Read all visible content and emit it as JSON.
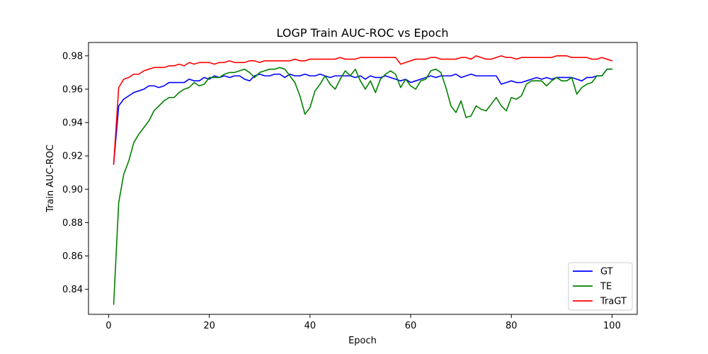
{
  "chart_data": {
    "type": "line",
    "title": "LOGP Train AUC-ROC vs Epoch",
    "xlabel": "Epoch",
    "ylabel": "Train AUC-ROC",
    "xlim": [
      -4,
      105
    ],
    "ylim": [
      0.825,
      0.988
    ],
    "xticks": [
      0,
      20,
      40,
      60,
      80,
      100
    ],
    "yticks": [
      0.84,
      0.86,
      0.88,
      0.9,
      0.92,
      0.94,
      0.96,
      0.98
    ],
    "ytick_labels": [
      "0.84",
      "0.86",
      "0.88",
      "0.90",
      "0.92",
      "0.94",
      "0.96",
      "0.98"
    ],
    "xtick_labels": [
      "0",
      "20",
      "40",
      "60",
      "80",
      "100"
    ],
    "grid": false,
    "legend": "bottom-right",
    "x": [
      1,
      2,
      3,
      4,
      5,
      6,
      7,
      8,
      9,
      10,
      11,
      12,
      13,
      14,
      15,
      16,
      17,
      18,
      19,
      20,
      21,
      22,
      23,
      24,
      25,
      26,
      27,
      28,
      29,
      30,
      31,
      32,
      33,
      34,
      35,
      36,
      37,
      38,
      39,
      40,
      41,
      42,
      43,
      44,
      45,
      46,
      47,
      48,
      49,
      50,
      51,
      52,
      53,
      54,
      55,
      56,
      57,
      58,
      59,
      60,
      61,
      62,
      63,
      64,
      65,
      66,
      67,
      68,
      69,
      70,
      71,
      72,
      73,
      74,
      75,
      76,
      77,
      78,
      79,
      80,
      81,
      82,
      83,
      84,
      85,
      86,
      87,
      88,
      89,
      90,
      91,
      92,
      93,
      94,
      95,
      96,
      97,
      98,
      99,
      100
    ],
    "series": [
      {
        "name": "GT",
        "color": "#0000ff",
        "values": [
          0.915,
          0.95,
          0.954,
          0.956,
          0.958,
          0.959,
          0.96,
          0.962,
          0.962,
          0.961,
          0.962,
          0.964,
          0.964,
          0.964,
          0.964,
          0.966,
          0.965,
          0.965,
          0.967,
          0.966,
          0.968,
          0.967,
          0.968,
          0.967,
          0.968,
          0.968,
          0.966,
          0.965,
          0.968,
          0.969,
          0.968,
          0.968,
          0.969,
          0.969,
          0.967,
          0.969,
          0.968,
          0.968,
          0.969,
          0.968,
          0.968,
          0.969,
          0.968,
          0.967,
          0.968,
          0.968,
          0.968,
          0.968,
          0.967,
          0.968,
          0.966,
          0.968,
          0.967,
          0.967,
          0.968,
          0.967,
          0.966,
          0.965,
          0.966,
          0.964,
          0.965,
          0.966,
          0.967,
          0.968,
          0.967,
          0.968,
          0.968,
          0.968,
          0.969,
          0.967,
          0.968,
          0.969,
          0.968,
          0.968,
          0.968,
          0.968,
          0.968,
          0.963,
          0.964,
          0.965,
          0.964,
          0.964,
          0.965,
          0.966,
          0.967,
          0.966,
          0.967,
          0.966,
          0.967,
          0.967,
          0.967,
          0.967,
          0.966,
          0.965,
          0.967,
          0.967,
          0.968,
          0.968,
          0.972,
          0.972
        ]
      },
      {
        "name": "TE",
        "color": "#008000",
        "values": [
          0.831,
          0.892,
          0.909,
          0.917,
          0.928,
          0.933,
          0.937,
          0.941,
          0.947,
          0.95,
          0.953,
          0.955,
          0.955,
          0.958,
          0.96,
          0.961,
          0.964,
          0.962,
          0.963,
          0.967,
          0.967,
          0.967,
          0.969,
          0.97,
          0.97,
          0.971,
          0.972,
          0.97,
          0.967,
          0.97,
          0.971,
          0.972,
          0.972,
          0.973,
          0.972,
          0.968,
          0.964,
          0.956,
          0.945,
          0.949,
          0.959,
          0.963,
          0.968,
          0.963,
          0.96,
          0.966,
          0.971,
          0.968,
          0.972,
          0.965,
          0.96,
          0.965,
          0.958,
          0.966,
          0.969,
          0.971,
          0.969,
          0.961,
          0.966,
          0.962,
          0.96,
          0.965,
          0.966,
          0.971,
          0.972,
          0.97,
          0.961,
          0.95,
          0.946,
          0.953,
          0.943,
          0.944,
          0.95,
          0.948,
          0.947,
          0.951,
          0.955,
          0.95,
          0.947,
          0.955,
          0.954,
          0.956,
          0.963,
          0.965,
          0.965,
          0.965,
          0.962,
          0.965,
          0.967,
          0.965,
          0.965,
          0.967,
          0.957,
          0.961,
          0.963,
          0.964,
          0.968,
          0.968,
          0.972,
          0.972
        ]
      },
      {
        "name": "TraGT",
        "color": "#ff0000",
        "values": [
          0.915,
          0.961,
          0.966,
          0.967,
          0.969,
          0.969,
          0.971,
          0.972,
          0.973,
          0.973,
          0.973,
          0.974,
          0.974,
          0.975,
          0.974,
          0.976,
          0.975,
          0.976,
          0.976,
          0.976,
          0.975,
          0.976,
          0.976,
          0.977,
          0.976,
          0.976,
          0.976,
          0.977,
          0.977,
          0.976,
          0.977,
          0.977,
          0.977,
          0.977,
          0.977,
          0.977,
          0.978,
          0.977,
          0.977,
          0.978,
          0.978,
          0.978,
          0.978,
          0.978,
          0.978,
          0.979,
          0.978,
          0.978,
          0.978,
          0.979,
          0.979,
          0.979,
          0.979,
          0.979,
          0.979,
          0.979,
          0.979,
          0.975,
          0.976,
          0.977,
          0.978,
          0.978,
          0.978,
          0.979,
          0.979,
          0.978,
          0.978,
          0.978,
          0.978,
          0.979,
          0.979,
          0.978,
          0.98,
          0.979,
          0.978,
          0.978,
          0.979,
          0.98,
          0.979,
          0.979,
          0.978,
          0.979,
          0.979,
          0.979,
          0.979,
          0.979,
          0.979,
          0.979,
          0.98,
          0.98,
          0.98,
          0.979,
          0.979,
          0.979,
          0.979,
          0.978,
          0.978,
          0.979,
          0.978,
          0.977
        ]
      }
    ]
  }
}
